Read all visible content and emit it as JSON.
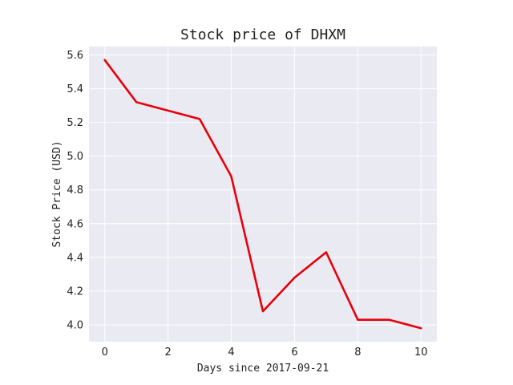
{
  "chart_data": {
    "type": "line",
    "title": "Stock price of DHXM",
    "xlabel": "Days since 2017-09-21",
    "ylabel": "Stock Price (USD)",
    "x": [
      0,
      1,
      2,
      3,
      4,
      5,
      6,
      7,
      8,
      9,
      10
    ],
    "series": [
      {
        "values": [
          5.57,
          5.32,
          5.27,
          5.22,
          4.88,
          4.08,
          4.28,
          4.43,
          4.03,
          4.03,
          3.98
        ],
        "color": "#e8000b"
      }
    ],
    "xlim": [
      -0.5,
      10.5
    ],
    "ylim": [
      3.9,
      5.65
    ],
    "xticks": [
      0,
      2,
      4,
      6,
      8,
      10
    ],
    "xtick_labels": [
      "0",
      "2",
      "4",
      "6",
      "8",
      "10"
    ],
    "yticks": [
      4.0,
      4.2,
      4.4,
      4.6,
      4.8,
      5.0,
      5.2,
      5.4,
      5.6
    ],
    "ytick_labels": [
      "4.0",
      "4.2",
      "4.4",
      "4.6",
      "4.8",
      "5.0",
      "5.2",
      "5.4",
      "5.6"
    ],
    "grid": true,
    "style": {
      "plot_background": "#eaeaf2",
      "grid_color": "#ffffff"
    }
  }
}
